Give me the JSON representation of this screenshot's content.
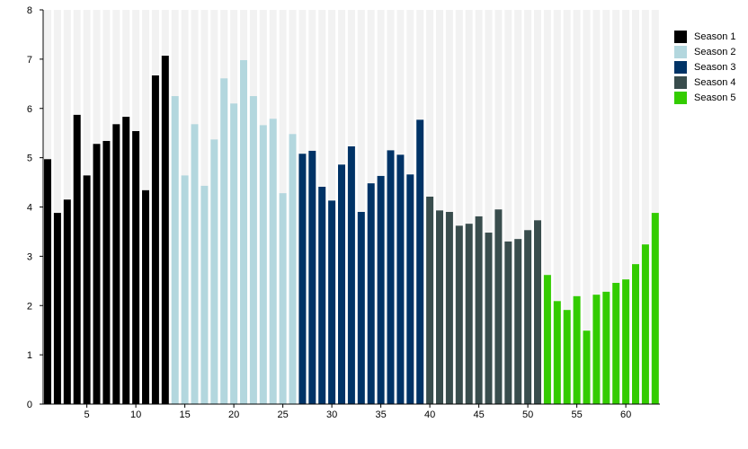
{
  "chart_data": {
    "type": "bar",
    "title": "",
    "xlabel": "",
    "ylabel": "",
    "ylim": [
      0,
      8
    ],
    "yticks": [
      "0",
      "1",
      "2",
      "3",
      "4",
      "5",
      "6",
      "7",
      "8"
    ],
    "xlim": [
      1,
      63
    ],
    "xticks": [
      "5",
      "10",
      "15",
      "20",
      "25",
      "30",
      "35",
      "40",
      "45",
      "50",
      "55",
      "60"
    ],
    "grid": "alternating vertical bands behind each bar",
    "legend": "right",
    "series": [
      {
        "name": "Season 1",
        "color": "#000000",
        "x": [
          1,
          2,
          3,
          4,
          5,
          6,
          7,
          8,
          9,
          10,
          11,
          12,
          13
        ],
        "values": [
          4.97,
          3.88,
          4.15,
          5.87,
          4.64,
          5.28,
          5.34,
          5.68,
          5.83,
          5.54,
          4.34,
          6.67,
          7.07
        ]
      },
      {
        "name": "Season 2",
        "color": "#b3d7de",
        "x": [
          14,
          15,
          16,
          17,
          18,
          19,
          20,
          21,
          22,
          23,
          24,
          25,
          26
        ],
        "values": [
          6.25,
          4.64,
          5.68,
          4.43,
          5.37,
          6.61,
          6.1,
          6.98,
          6.25,
          5.66,
          5.79,
          4.28,
          5.48
        ]
      },
      {
        "name": "Season 3",
        "color": "#003366",
        "x": [
          27,
          28,
          29,
          30,
          31,
          32,
          33,
          34,
          35,
          36,
          37,
          38,
          39
        ],
        "values": [
          5.08,
          5.14,
          4.41,
          4.13,
          4.86,
          5.23,
          3.9,
          4.48,
          4.63,
          5.15,
          5.06,
          4.66,
          5.77
        ]
      },
      {
        "name": "Season 4",
        "color": "#394d4d",
        "x": [
          40,
          41,
          42,
          43,
          44,
          45,
          46,
          47,
          48,
          49,
          50,
          51
        ],
        "values": [
          4.21,
          3.93,
          3.9,
          3.62,
          3.66,
          3.81,
          3.48,
          3.95,
          3.3,
          3.35,
          3.53,
          3.73
        ]
      },
      {
        "name": "Season 5",
        "color": "#33cc00",
        "x": [
          52,
          53,
          54,
          55,
          56,
          57,
          58,
          59,
          60,
          61,
          62,
          63
        ],
        "values": [
          2.62,
          2.09,
          1.91,
          2.19,
          1.49,
          2.22,
          2.28,
          2.46,
          2.53,
          2.84,
          3.24,
          3.88
        ]
      }
    ]
  }
}
